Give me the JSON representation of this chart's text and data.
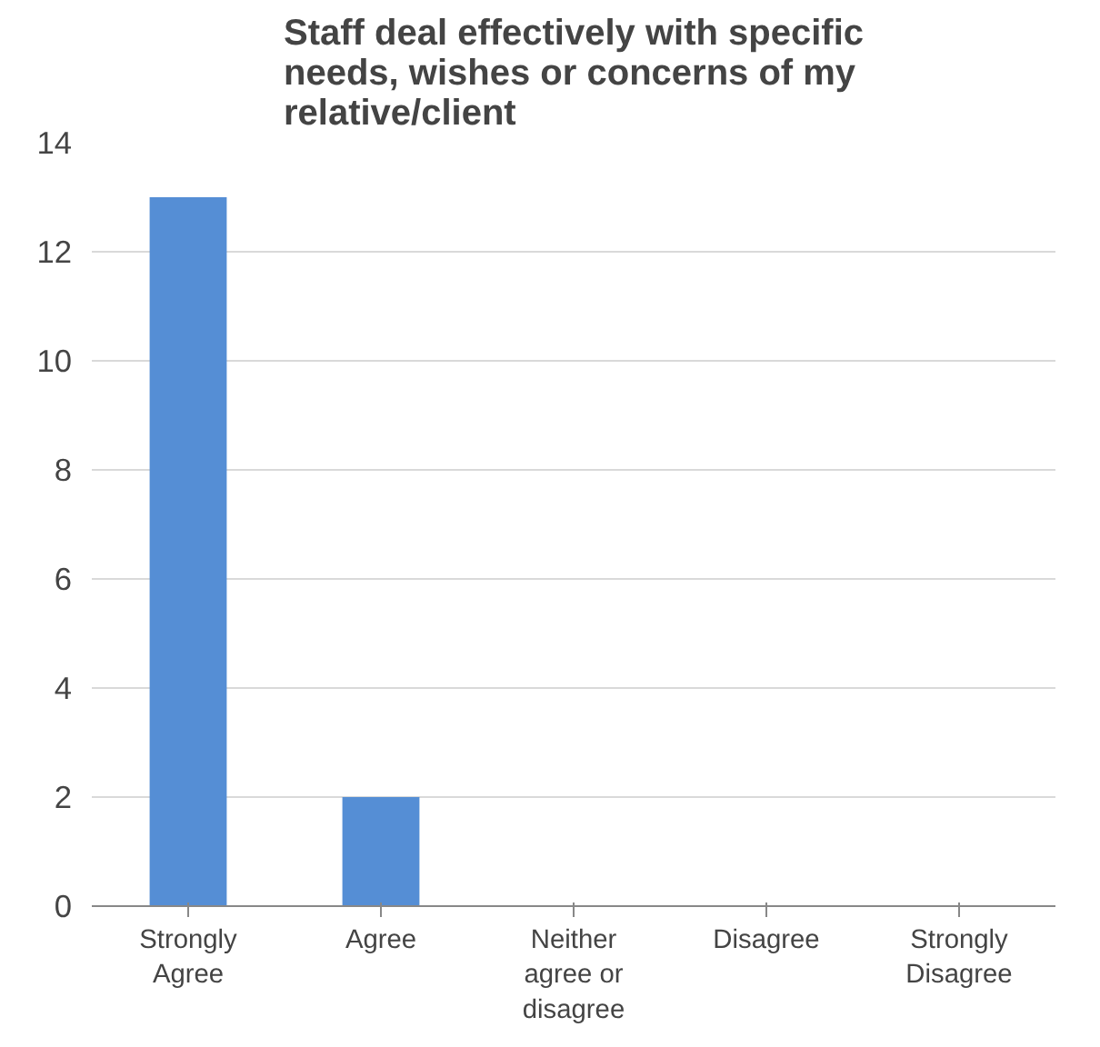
{
  "chart_data": {
    "type": "bar",
    "title": "Staff deal effectively with specific needs, wishes or concerns of my relative/client",
    "categories": [
      "Strongly Agree",
      "Agree",
      "Neither agree or disagree",
      "Disagree",
      "Strongly Disagree"
    ],
    "values": [
      13,
      2,
      0,
      0,
      0
    ],
    "color": "#558ed5",
    "ylim": [
      0,
      14
    ],
    "yticks": [
      0,
      2,
      4,
      6,
      8,
      10,
      12,
      14
    ],
    "grid": "y"
  }
}
